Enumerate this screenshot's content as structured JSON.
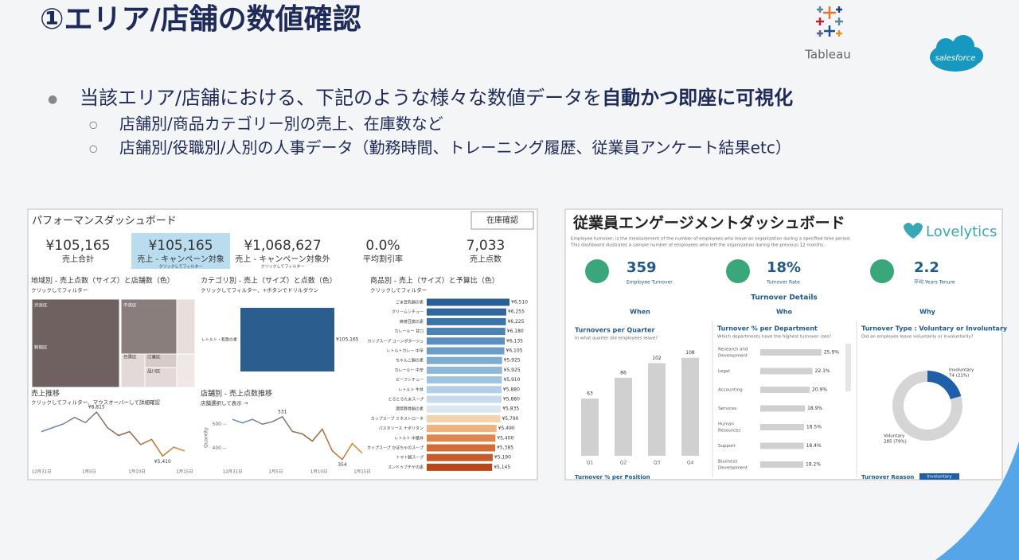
{
  "header": {
    "title": "①エリア/店舗の数値確認",
    "logos": [
      "Tableau",
      "salesforce"
    ]
  },
  "bullets": {
    "main": {
      "text": "当該エリア/店舗における、下記のような様々な数値データを",
      "emphasis": "自動かつ即座に可視化"
    },
    "sub": [
      "店舗別/商品カテゴリー別の売上、在庫数など",
      "店舗別/役職別/人別の人事データ（勤務時間、トレーニング履歴、従業員アンケート結果etc）"
    ]
  },
  "performance_dashboard": {
    "title": "パフォーマンスダッシュボード",
    "button": "在庫確認",
    "kpis": [
      {
        "value": "¥105,165",
        "label": "売上合計"
      },
      {
        "value": "¥105,165",
        "label": "売上 - キャンペーン対象",
        "note": "クリックしてフィルター",
        "highlighted": true
      },
      {
        "value": "¥1,068,627",
        "label": "売上 - キャンペーン対象外",
        "note": "クリックしてフィルター"
      },
      {
        "value": "0.0%",
        "label": "平均割引率"
      },
      {
        "value": "7,033",
        "label": "売上点数"
      }
    ],
    "region": {
      "title": "地域別 - 売上点数（サイズ）と店舗数（色）",
      "subtitle": "クリックしてフィルター",
      "areas": [
        "渋谷区",
        "中央区",
        "新宿区",
        "目黒区",
        "江東区",
        "品川区"
      ]
    },
    "category": {
      "title": "カテゴリ別 - 売上（サイズ）と点数（色）",
      "subtitle": "クリックしてフィルター、+ボタンでドリルダウン",
      "item": "レトルト・和惣の素",
      "value": "¥105,165"
    },
    "products": {
      "title": "商品別 - 売上（サイズ）と予算比（色）",
      "subtitle": "クリックしてフィルター",
      "items": [
        {
          "name": "ごま豆乳鍋の素",
          "value": 6510,
          "label": "¥6,510",
          "color": "#2a5f95"
        },
        {
          "name": "クリームシチュー",
          "value": 6255,
          "label": "¥6,255",
          "color": "#30689e"
        },
        {
          "name": "麻婆豆腐の素",
          "value": 6225,
          "label": "¥6,225",
          "color": "#3a74a9"
        },
        {
          "name": "カレールー 甘口",
          "value": 6180,
          "label": "¥6,180",
          "color": "#4a82b4"
        },
        {
          "name": "カップスープ コーンポタージュ",
          "value": 6135,
          "label": "¥6,135",
          "color": "#5b90be"
        },
        {
          "name": "レトルトカレー 中辛",
          "value": 6105,
          "label": "¥6,105",
          "color": "#6b9dc7"
        },
        {
          "name": "ちゃんこ鍋の素",
          "value": 5925,
          "label": "¥5,925",
          "color": "#7eabd0"
        },
        {
          "name": "カレールー 中辛",
          "value": 5925,
          "label": "¥5,925",
          "color": "#8fb7d7"
        },
        {
          "name": "ビーフシチュー",
          "value": 5910,
          "label": "¥5,910",
          "color": "#a0c3de"
        },
        {
          "name": "レトルト 牛丼",
          "value": 5880,
          "label": "¥5,880",
          "color": "#b3cfe5"
        },
        {
          "name": "とろとろたまスープ",
          "value": 5880,
          "label": "¥5,880",
          "color": "#c5daeb"
        },
        {
          "name": "濃厚豚骨鍋の素",
          "value": 5835,
          "label": "¥5,835",
          "color": "#dbe6ee"
        },
        {
          "name": "カップスープ ミネストローネ",
          "value": 5790,
          "label": "¥5,790",
          "color": "#f2d3ab"
        },
        {
          "name": "パスタソース ナポリタン",
          "value": 5490,
          "label": "¥5,490",
          "color": "#efb47e"
        },
        {
          "name": "レトルト 中華丼",
          "value": 5400,
          "label": "¥5,400",
          "color": "#e0864d"
        },
        {
          "name": "カップスープ かぼちゃのスープ",
          "value": 5385,
          "label": "¥5,385",
          "color": "#d46c35"
        },
        {
          "name": "トマト鍋スープ",
          "value": 5190,
          "label": "¥5,190",
          "color": "#c65a28"
        },
        {
          "name": "スンドゥブチゲの素",
          "value": 5145,
          "label": "¥5,145",
          "color": "#b8481c"
        }
      ]
    },
    "sales_trend": {
      "title": "売上推移",
      "subtitle": "クリックしてフィルター、マウスオーバーして詳細確認",
      "values": [
        7300,
        7600,
        7900,
        8400,
        8000,
        8815,
        7600,
        7000,
        7300,
        6300,
        6700,
        5410,
        6100,
        5800
      ],
      "ylim": [
        5000,
        9000
      ],
      "annotations": [
        "¥8,815",
        "¥5,410"
      ],
      "x_labels": [
        "12月31日",
        "1月5日",
        "1月10日",
        "1月15日"
      ]
    },
    "store_trend": {
      "title": "店舗別 - 売上点数推移",
      "subtitle": "店舗選択して表示 →",
      "y_label": "Quantity",
      "yticks": [
        500,
        400
      ],
      "ylim": [
        330,
        560
      ],
      "values": [
        520,
        505,
        520,
        500,
        510,
        531,
        470,
        460,
        430,
        480,
        390,
        354,
        420,
        380
      ],
      "annotations": [
        "531",
        "354"
      ],
      "x_labels": [
        "12月31日",
        "1月5日",
        "1月10日",
        "1月15日"
      ]
    }
  },
  "engagement_dashboard": {
    "title": "従業員エンゲージメントダッシュボード",
    "brand": "Lovelytics",
    "description": [
      "Employee turnover, is the measurement of the number of employees who leave an organization during a specified time period.",
      "This dashboard illustrates a sample number of employees who left the organization during the previous 12 months."
    ],
    "kpis": [
      {
        "value": "359",
        "label": "Employee Turnover"
      },
      {
        "value": "18%",
        "label": "Turnover Rate"
      },
      {
        "value": "2.2",
        "label": "平均 Years Tenure"
      }
    ],
    "section": "Turnover Details",
    "columns": [
      "When",
      "Who",
      "Why"
    ],
    "quarters": {
      "title": "Turnovers per Quarter",
      "subtitle": "In what quarter did employees leave?",
      "categories": [
        "Q1",
        "Q2",
        "Q3",
        "Q4"
      ],
      "values": [
        63,
        86,
        102,
        108
      ],
      "ylim": [
        0,
        120
      ]
    },
    "departments": {
      "title": "Turnover % per Department",
      "subtitle": "Which departments have the highest turnover rate?",
      "xlim": [
        0,
        30
      ],
      "items": [
        {
          "name": [
            "Research and",
            "Development"
          ],
          "value": 25.9,
          "label": "25.9%"
        },
        {
          "name": [
            "Legal"
          ],
          "value": 22.1,
          "label": "22.1%"
        },
        {
          "name": [
            "Accounting"
          ],
          "value": 20.9,
          "label": "20.9%"
        },
        {
          "name": [
            "Services"
          ],
          "value": 18.9,
          "label": "18.9%"
        },
        {
          "name": [
            "Human",
            "Resources"
          ],
          "value": 18.5,
          "label": "18.5%"
        },
        {
          "name": [
            "Support"
          ],
          "value": 18.4,
          "label": "18.4%"
        },
        {
          "name": [
            "Business",
            "Development"
          ],
          "value": 18.2,
          "label": "18.2%"
        }
      ]
    },
    "turnover_type": {
      "title": "Turnover Type : Voluntary or Involuntary",
      "subtitle": "Did an employee leave voluntarily or involuntarily?",
      "slices": [
        {
          "name": "Involuntary",
          "value": 74,
          "label": "74 (21%)",
          "color": "#1f5fa8"
        },
        {
          "name": "Voluntary",
          "value": 285,
          "label": "285 (79%)",
          "color": "#d5d5d5"
        }
      ]
    },
    "footer": [
      "Turnover % per Position",
      "Turnover Reason",
      "Involuntary"
    ]
  }
}
